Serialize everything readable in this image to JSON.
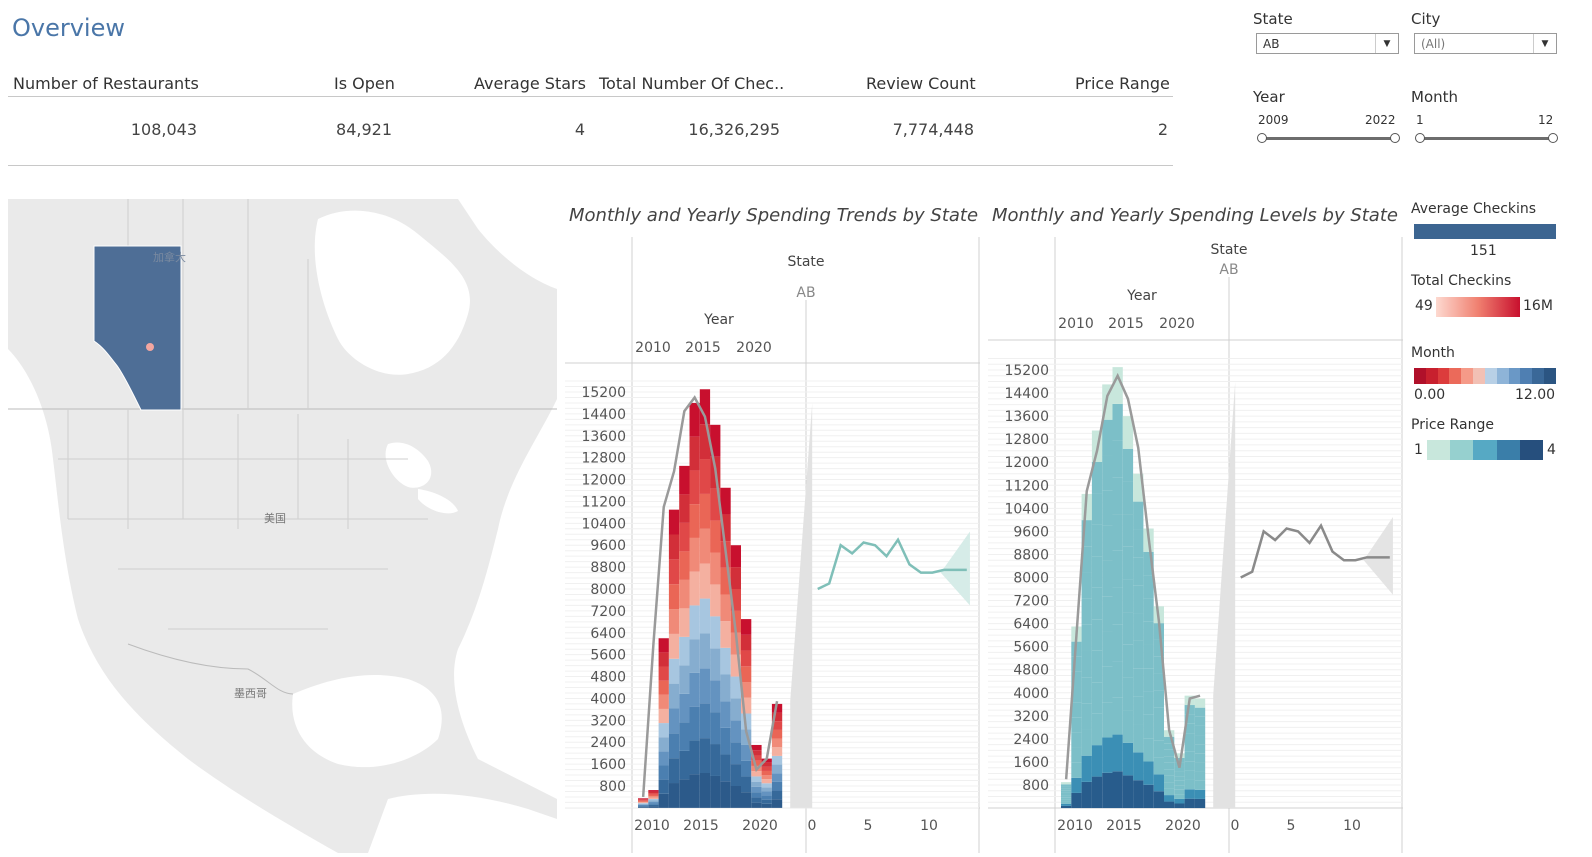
{
  "header": {
    "title": "Overview"
  },
  "kpis": {
    "headers": [
      "Number of Restaurants",
      "Is Open",
      "Average Stars",
      "Total Number Of Chec..",
      "Review Count",
      "Price Range"
    ],
    "values": [
      "108,043",
      "84,921",
      "4",
      "16,326,295",
      "7,774,448",
      "2"
    ]
  },
  "filters": {
    "state_label": "State",
    "state_value": "AB",
    "city_label": "City",
    "city_value": "(All)",
    "year_label": "Year",
    "year_min": "2009",
    "year_max": "2022",
    "month_label": "Month",
    "month_min": "1",
    "month_max": "12"
  },
  "map": {
    "labels": [
      "加拿大",
      "美国",
      "墨西哥"
    ],
    "highlight_color": "#4e6e96"
  },
  "charts": {
    "trends": {
      "title": "Monthly and Yearly Spending Trends by State",
      "state_header": "State",
      "state_value": "AB",
      "year_header": "Year",
      "year_ticks": [
        "2010",
        "2015",
        "2020"
      ],
      "y_ticks": [
        "15200",
        "14400",
        "13600",
        "12800",
        "12000",
        "11200",
        "10400",
        "9600",
        "8800",
        "8000",
        "7200",
        "6400",
        "5600",
        "4800",
        "4000",
        "3200",
        "2400",
        "1600",
        "800"
      ],
      "bottom_year_ticks": [
        "2010",
        "2015",
        "2020"
      ],
      "bottom_month_ticks": [
        "0",
        "5",
        "10"
      ]
    },
    "levels": {
      "title": "Monthly and Yearly Spending Levels by State",
      "state_header": "State",
      "state_value": "AB",
      "year_header": "Year",
      "year_ticks": [
        "2010",
        "2015",
        "2020"
      ],
      "y_ticks": [
        "15200",
        "14400",
        "13600",
        "12800",
        "12000",
        "11200",
        "10400",
        "9600",
        "8800",
        "8000",
        "7200",
        "6400",
        "5600",
        "4800",
        "4000",
        "3200",
        "2400",
        "1600",
        "800"
      ],
      "bottom_year_ticks": [
        "2010",
        "2015",
        "2020"
      ],
      "bottom_month_ticks": [
        "0",
        "5",
        "10"
      ]
    }
  },
  "chart_data": [
    {
      "type": "bar",
      "title": "Monthly and Yearly Spending Trends by State",
      "categories": [
        "2009",
        "2010",
        "2011",
        "2012",
        "2013",
        "2014",
        "2015",
        "2016",
        "2017",
        "2018",
        "2019",
        "2020",
        "2021",
        "2022"
      ],
      "values": [
        350,
        650,
        6200,
        10900,
        12500,
        14800,
        15300,
        14000,
        11700,
        9600,
        6900,
        2300,
        1800,
        3800
      ],
      "line_values": [
        400,
        6000,
        11000,
        12300,
        14500,
        15000,
        14300,
        12400,
        9400,
        6400,
        2800,
        1400,
        1800,
        3900
      ],
      "colors": {
        "low_month": "#2e5a87",
        "mid_month": "#a7c6e0",
        "high_month": "#cf1f2f"
      }
    },
    {
      "type": "line",
      "title": "Monthly and Yearly Spending Trends by State",
      "x": [
        1,
        2,
        3,
        4,
        5,
        6,
        7,
        8,
        9,
        10,
        11,
        12,
        13,
        14
      ],
      "values": [
        8000,
        8200,
        9600,
        9300,
        9700,
        9600,
        9200,
        9800,
        8900,
        8600,
        8600,
        8700,
        8700,
        8700
      ],
      "color": "#7fbfb8"
    },
    {
      "type": "bar",
      "title": "Monthly and Yearly Spending Levels by State",
      "categories": [
        "2009",
        "2010",
        "2011",
        "2012",
        "2013",
        "2014",
        "2015",
        "2016",
        "2017",
        "2018",
        "2019",
        "2020",
        "2021",
        "2022"
      ],
      "values": [
        900,
        6300,
        10900,
        13100,
        14700,
        15300,
        13600,
        11600,
        9700,
        7000,
        2700,
        1900,
        3900,
        3800
      ],
      "line_values": [
        1000,
        6000,
        11000,
        12400,
        14300,
        15000,
        14200,
        12500,
        9400,
        6500,
        2700,
        1400,
        3800,
        3900
      ],
      "colors": {
        "price_1": "#c8e7dc",
        "price_2": "#7cbfc8",
        "price_3": "#3b8fb5",
        "price_4": "#285c8c"
      }
    },
    {
      "type": "line",
      "title": "Monthly and Yearly Spending Levels by State",
      "x": [
        1,
        2,
        3,
        4,
        5,
        6,
        7,
        8,
        9,
        10,
        11,
        12,
        13,
        14
      ],
      "values": [
        8000,
        8200,
        9600,
        9300,
        9700,
        9600,
        9200,
        9800,
        8900,
        8600,
        8600,
        8700,
        8700,
        8700
      ],
      "color": "#8a8a8a"
    }
  ],
  "legends": {
    "avg_checkins": {
      "title": "Average Checkins",
      "value": "151",
      "color": "#3c6591"
    },
    "total_checkins": {
      "title": "Total Checkins",
      "min": "49",
      "max": "16M"
    },
    "month": {
      "title": "Month",
      "min": "0.00",
      "max": "12.00"
    },
    "price_range": {
      "title": "Price Range",
      "min": "1",
      "max": "4",
      "colors": [
        "#c8e7dc",
        "#96d0cf",
        "#56a9c4",
        "#3a7ea9",
        "#264f7d"
      ]
    }
  }
}
